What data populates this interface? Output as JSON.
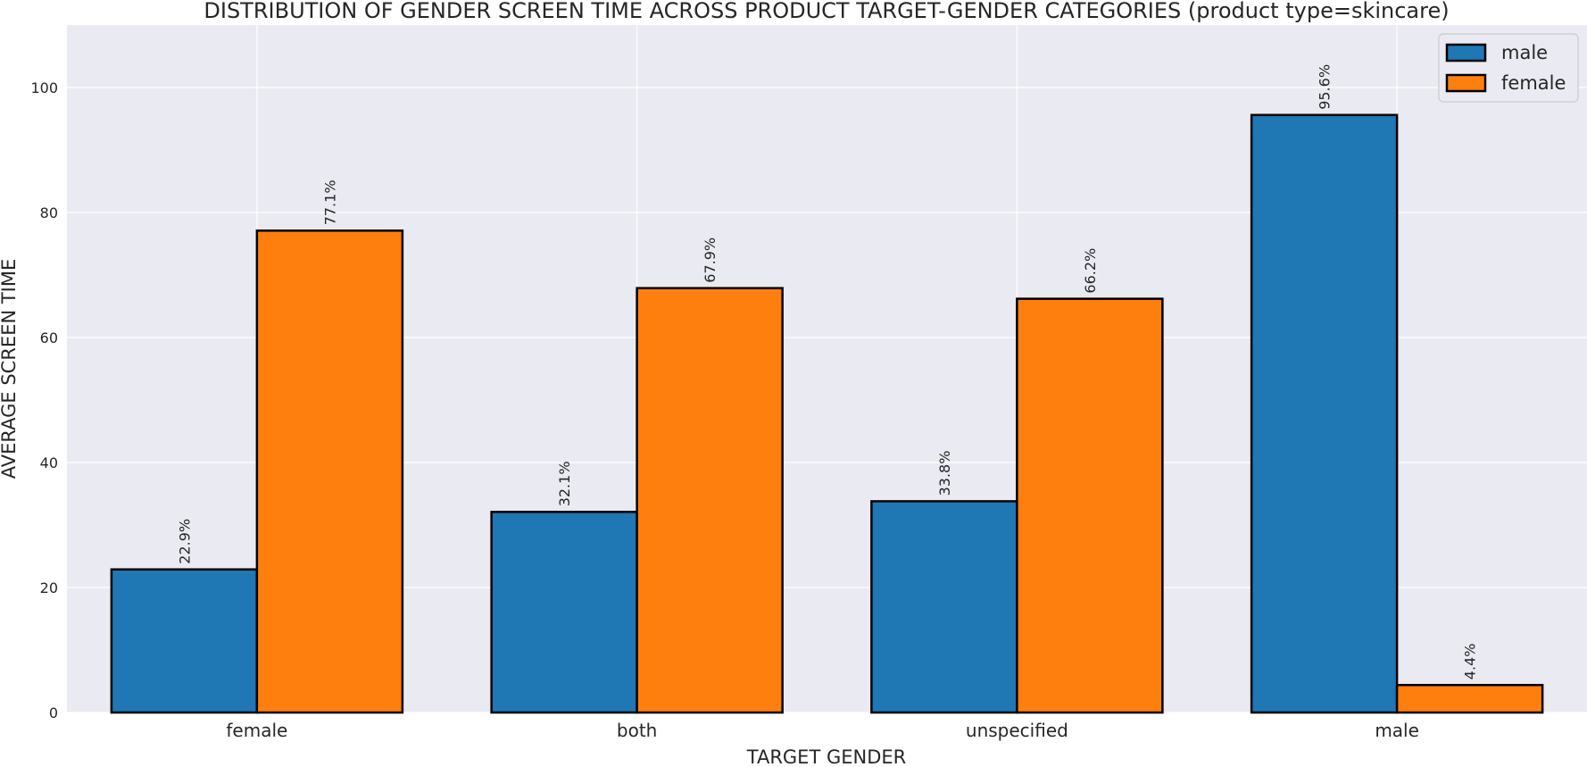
{
  "chart_data": {
    "type": "bar",
    "title": "DISTRIBUTION OF GENDER SCREEN TIME ACROSS PRODUCT TARGET-GENDER CATEGORIES (product type=skincare)",
    "xlabel": "TARGET GENDER",
    "ylabel": "AVERAGE SCREEN TIME",
    "categories": [
      "female",
      "both",
      "unspecified",
      "male"
    ],
    "series": [
      {
        "name": "male",
        "values": [
          22.9,
          32.1,
          33.8,
          95.6
        ],
        "labels": [
          "22.9%",
          "32.1%",
          "33.8%",
          "95.6%"
        ],
        "color": "#1f77b4"
      },
      {
        "name": "female",
        "values": [
          77.1,
          67.9,
          66.2,
          4.4
        ],
        "labels": [
          "77.1%",
          "67.9%",
          "66.2%",
          "4.4%"
        ],
        "color": "#ff7f0e"
      }
    ],
    "ylim": [
      0,
      110
    ],
    "yticks": [
      0,
      20,
      40,
      60,
      80,
      100
    ],
    "grid": true,
    "background": "#eaeaf2",
    "legend_position": "top-right"
  }
}
